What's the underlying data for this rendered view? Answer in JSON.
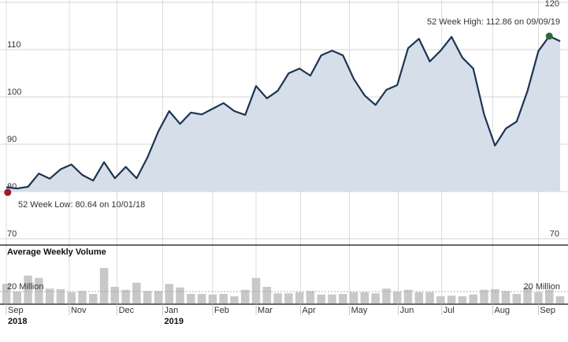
{
  "chart_data": [
    {
      "type": "area",
      "values": [
        80.9,
        80.64,
        81.0,
        83.8,
        82.7,
        84.7,
        85.7,
        83.5,
        82.3,
        86.2,
        82.8,
        85.2,
        82.8,
        87.2,
        92.7,
        97.0,
        94.3,
        96.7,
        96.3,
        97.5,
        98.7,
        97.0,
        96.2,
        102.3,
        99.7,
        101.3,
        105.0,
        106.0,
        104.5,
        108.8,
        109.8,
        108.8,
        103.8,
        100.3,
        98.3,
        101.5,
        102.5,
        110.3,
        112.3,
        107.5,
        109.8,
        112.7,
        108.3,
        106.0,
        96.3,
        89.7,
        93.3,
        94.8,
        101.3,
        109.7,
        112.86,
        111.8
      ],
      "color": "#1c3553",
      "fill": "#d6dee9",
      "high_color": "#2c6a3a",
      "low_color": "#a0192b",
      "xlim": [
        0,
        51
      ],
      "ylim": [
        70,
        120
      ],
      "yticks": [
        70,
        80,
        90,
        100,
        110,
        120
      ],
      "grid": true,
      "annotations": [
        "52 Week High: 112.86 on 09/09/19",
        "52 Week Low: 80.64 on 10/01/18"
      ]
    },
    {
      "type": "bar",
      "title": "Average Weekly Volume",
      "values": [
        33,
        20,
        47,
        43,
        25,
        24,
        19,
        21,
        16,
        60,
        28,
        23,
        35,
        21,
        21,
        33,
        27,
        16,
        16,
        15,
        16,
        12,
        23,
        43,
        28,
        17,
        17,
        19,
        21,
        15,
        15,
        16,
        19,
        19,
        17,
        25,
        20,
        23,
        19,
        19,
        12,
        13,
        12,
        15,
        23,
        24,
        21,
        16,
        27,
        19,
        23,
        12
      ],
      "color": "#c8c8c8",
      "xlim": [
        0,
        51
      ],
      "ylim": [
        0,
        100
      ],
      "yticks": [
        {
          "value": 20,
          "label": "20 Million"
        }
      ],
      "xticks": [
        {
          "value": 0,
          "label": "Sep"
        },
        {
          "value": 5.8,
          "label": "Nov"
        },
        {
          "value": 10.2,
          "label": "Dec"
        },
        {
          "value": 14.4,
          "label": "Jan"
        },
        {
          "value": 19.0,
          "label": "Feb"
        },
        {
          "value": 23.0,
          "label": "Mar"
        },
        {
          "value": 27.1,
          "label": "Apr"
        },
        {
          "value": 31.6,
          "label": "May"
        },
        {
          "value": 36.1,
          "label": "Jun"
        },
        {
          "value": 40.1,
          "label": "Jul"
        },
        {
          "value": 44.8,
          "label": "Aug"
        },
        {
          "value": 49.0,
          "label": "Sep"
        }
      ],
      "year_ticks": [
        {
          "value": 0,
          "label": "2018"
        },
        {
          "value": 14.4,
          "label": "2019"
        }
      ]
    }
  ]
}
